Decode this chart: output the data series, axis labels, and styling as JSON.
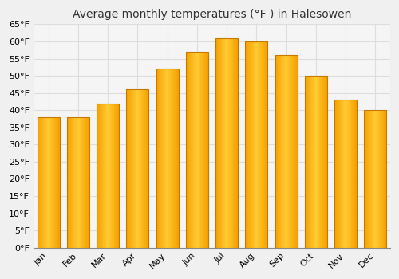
{
  "title": "Average monthly temperatures (°F ) in Halesowen",
  "months": [
    "Jan",
    "Feb",
    "Mar",
    "Apr",
    "May",
    "Jun",
    "Jul",
    "Aug",
    "Sep",
    "Oct",
    "Nov",
    "Dec"
  ],
  "values": [
    38,
    38,
    42,
    46,
    52,
    57,
    61,
    60,
    56,
    50,
    43,
    40
  ],
  "bar_color_left": "#F5A000",
  "bar_color_center": "#FFCC33",
  "bar_color_right": "#F5A000",
  "bar_edge_color": "#C87800",
  "background_color": "#F0F0F0",
  "plot_bg_color": "#F5F5F5",
  "grid_color": "#DDDDDD",
  "ylim": [
    0,
    65
  ],
  "yticks": [
    0,
    5,
    10,
    15,
    20,
    25,
    30,
    35,
    40,
    45,
    50,
    55,
    60,
    65
  ],
  "title_fontsize": 10,
  "tick_fontsize": 8,
  "bar_width": 0.75
}
